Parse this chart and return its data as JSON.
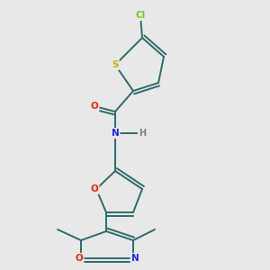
{
  "background_color": "#e8e8e8",
  "bond_color": "#2d6b6b",
  "atom_colors": {
    "Cl": "#7ec820",
    "S": "#c8b400",
    "O": "#ff2000",
    "N": "#2020ff",
    "H": "#808080",
    "C": "#2d6b6b"
  },
  "figsize": [
    3.0,
    3.0
  ],
  "dpi": 100
}
